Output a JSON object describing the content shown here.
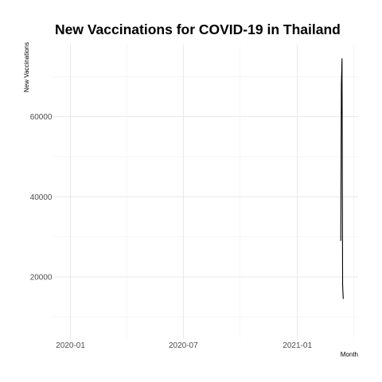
{
  "chart_data": {
    "type": "line",
    "title": "New Vaccinations for COVID-19 in Thailand",
    "xlabel": "Month",
    "ylabel": "New Vaccinations",
    "x_ticks": [
      "2020-01",
      "2020-07",
      "2021-01"
    ],
    "y_ticks": [
      20000,
      40000,
      60000
    ],
    "xlim": [
      "2019-12-03",
      "2021-04-09"
    ],
    "ylim": [
      4500,
      78000
    ],
    "grid": true,
    "legend": "none",
    "series": [
      {
        "color": "#000000",
        "points": [
          {
            "x": "2021-03-12",
            "y": 29000
          },
          {
            "x": "2021-03-13",
            "y": 68000
          },
          {
            "x": "2021-03-14",
            "y": 74500
          },
          {
            "x": "2021-03-15",
            "y": 18000
          },
          {
            "x": "2021-03-16",
            "y": 14500
          }
        ]
      }
    ]
  }
}
